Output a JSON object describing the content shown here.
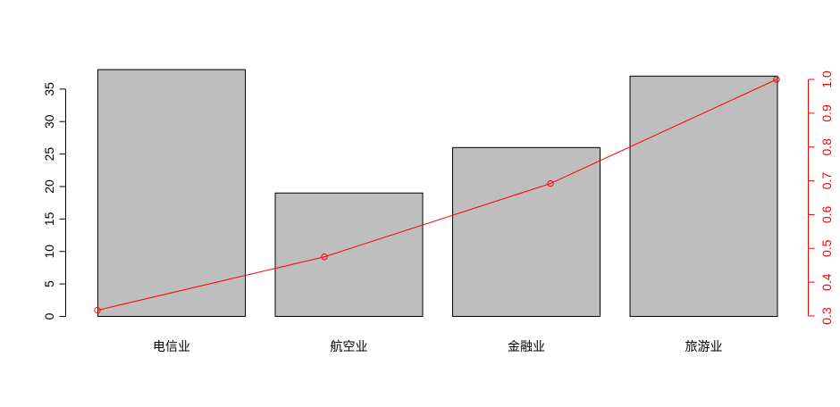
{
  "chart_data": {
    "type": "bar",
    "categories": [
      "电信业",
      "航空业",
      "金融业",
      "旅游业"
    ],
    "series": [
      {
        "values": [
          38,
          19,
          26,
          37
        ],
        "type": "bar",
        "axis": "left",
        "color": "#bebebe"
      },
      {
        "values": [
          0.317,
          0.475,
          0.692,
          1.0
        ],
        "type": "line",
        "axis": "right",
        "color": "#ff0000",
        "marker": "open-circle"
      }
    ],
    "ylim": [
      0,
      38
    ],
    "y_ticks": [
      0,
      5,
      10,
      15,
      20,
      25,
      30,
      35
    ],
    "y2lim": [
      0.3,
      1.0
    ],
    "y2_ticks": [
      0.3,
      0.4,
      0.5,
      0.6,
      0.7,
      0.8,
      0.9,
      1.0
    ],
    "grid": false,
    "title": "",
    "xlabel": "",
    "ylabel": ""
  }
}
